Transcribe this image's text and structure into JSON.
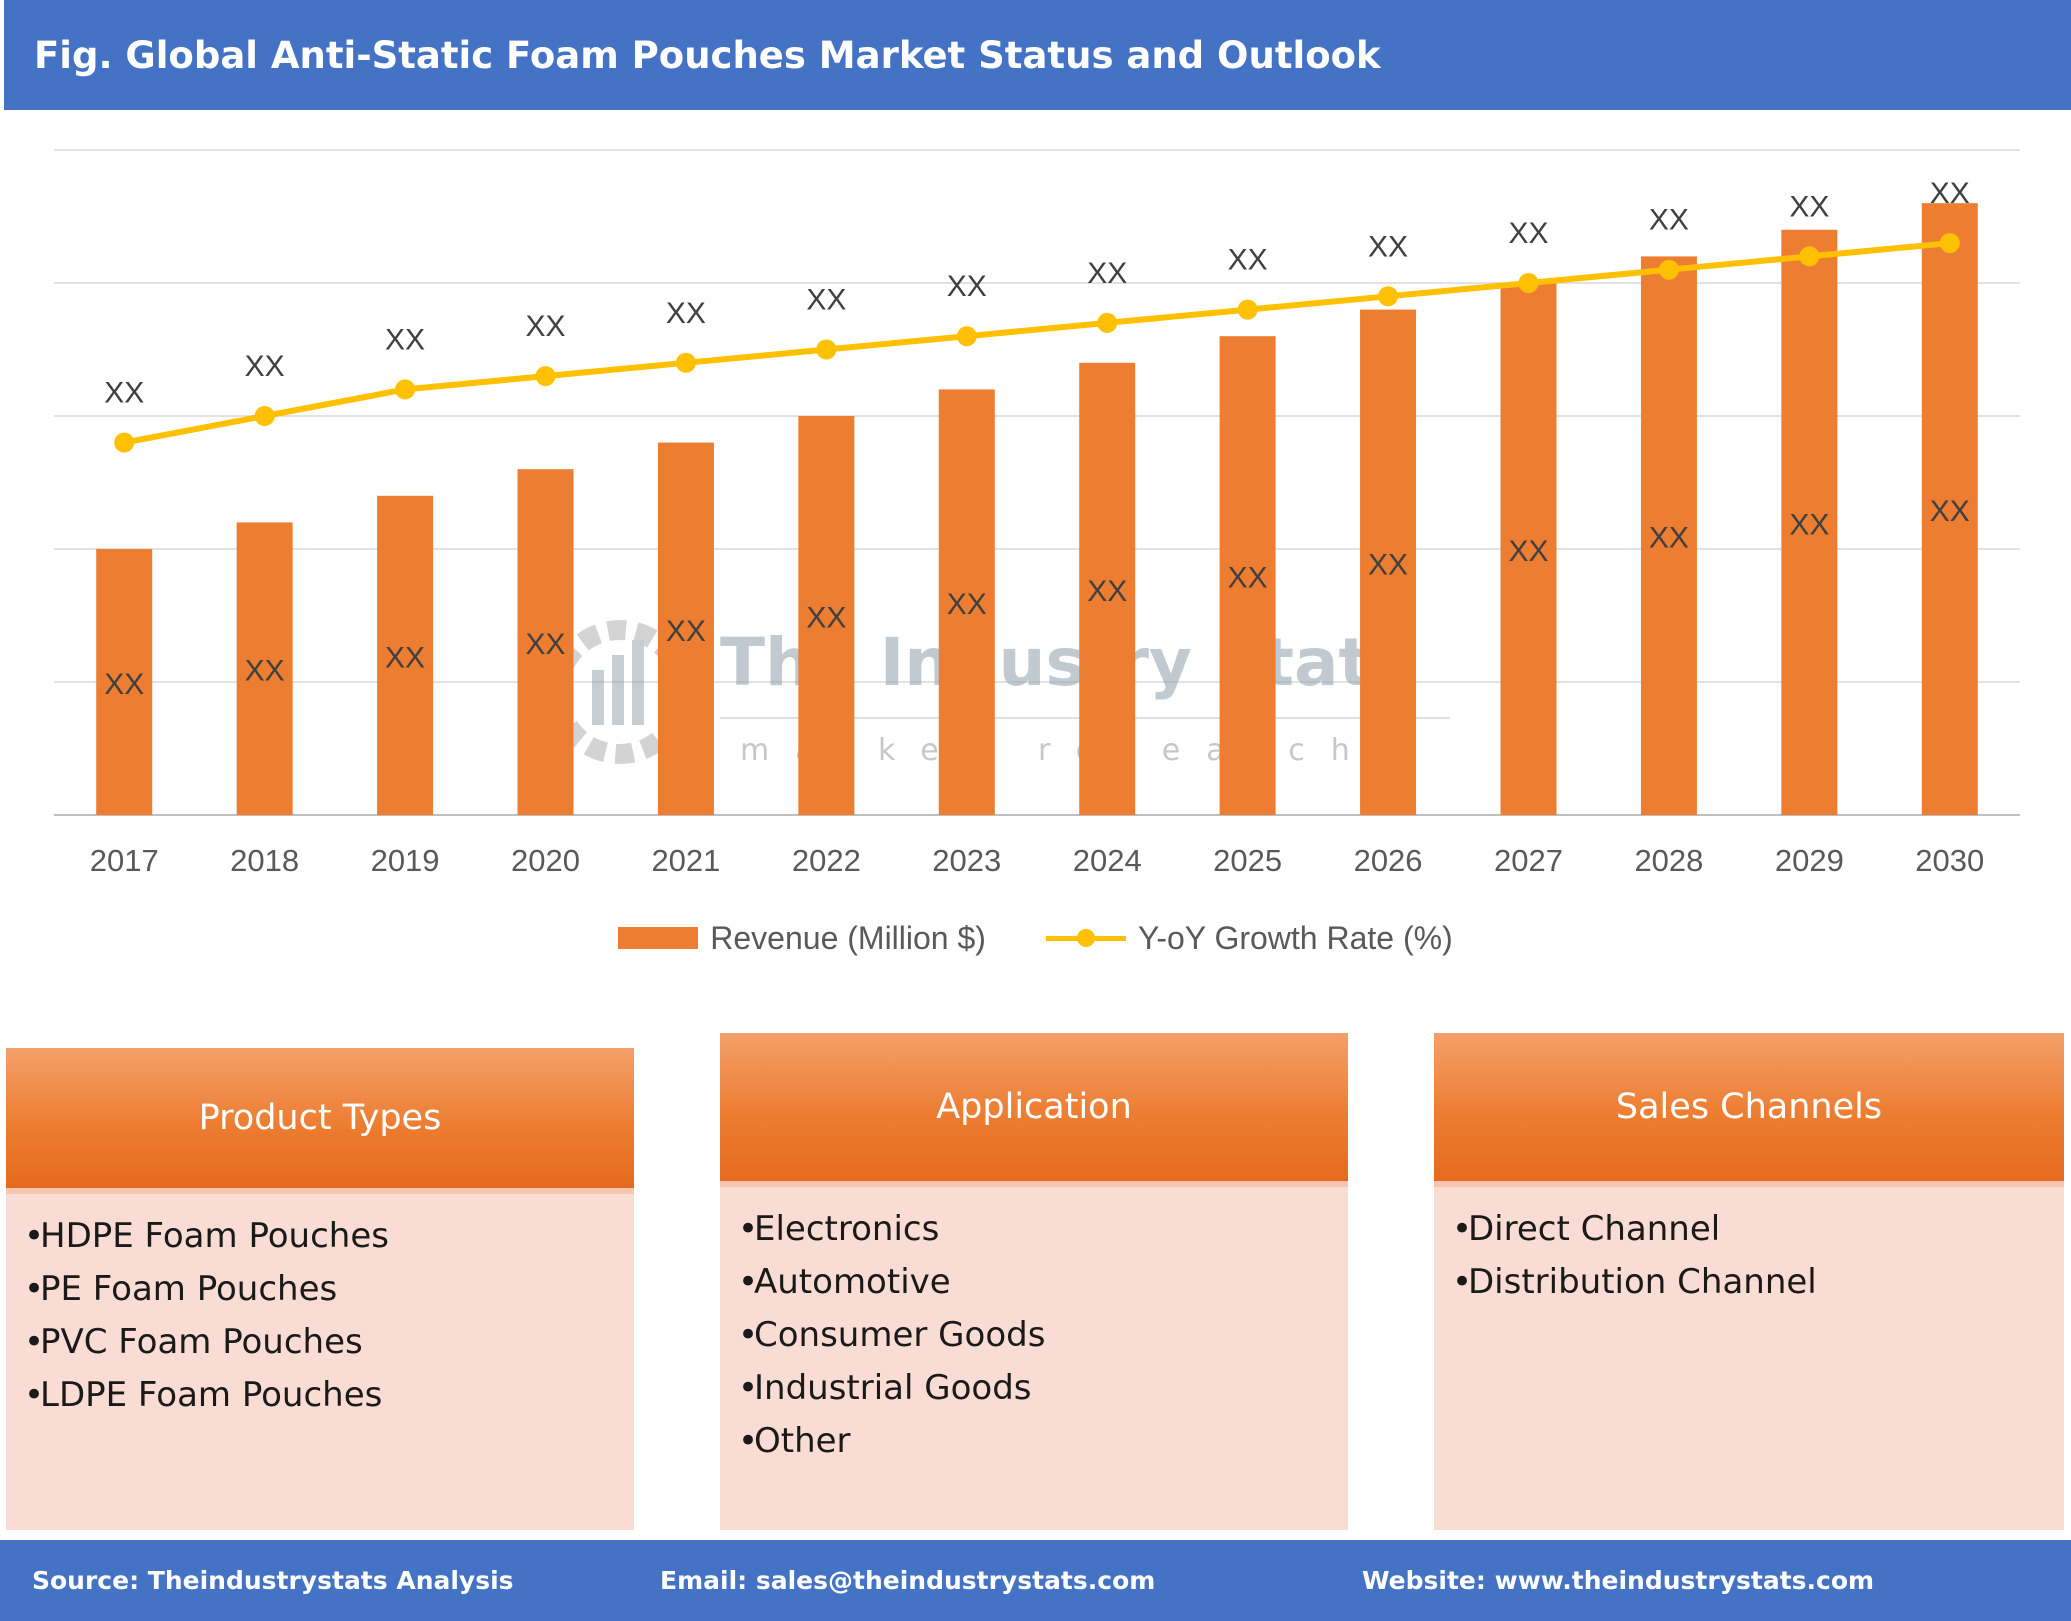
{
  "header": {
    "title": "Fig. Global Anti-Static Foam Pouches Market Status and Outlook"
  },
  "colors": {
    "header_bg": "#4472c4",
    "bar": "#ed7d31",
    "line": "#ffc000",
    "panel_header": "#ed7d31",
    "panel_body": "#f9dcd3"
  },
  "chart_data": {
    "type": "bar",
    "categories": [
      "2017",
      "2018",
      "2019",
      "2020",
      "2021",
      "2022",
      "2023",
      "2024",
      "2025",
      "2026",
      "2027",
      "2028",
      "2029",
      "2030"
    ],
    "series": [
      {
        "name": "Revenue (Million $)",
        "type": "bar",
        "values": [
          40,
          44,
          48,
          52,
          56,
          60,
          64,
          68,
          72,
          76,
          80,
          84,
          88,
          92
        ],
        "data_labels": [
          "XX",
          "XX",
          "XX",
          "XX",
          "XX",
          "XX",
          "XX",
          "XX",
          "XX",
          "XX",
          "XX",
          "XX",
          "XX",
          "XX"
        ]
      },
      {
        "name": "Y-oY Growth Rate (%)",
        "type": "line",
        "values": [
          56,
          60,
          64,
          66,
          68,
          70,
          72,
          74,
          76,
          78,
          80,
          82,
          84,
          86
        ],
        "data_labels": [
          "XX",
          "XX",
          "XX",
          "XX",
          "XX",
          "XX",
          "XX",
          "XX",
          "XX",
          "XX",
          "XX",
          "XX",
          "XX",
          "XX"
        ]
      }
    ],
    "ylim": [
      0,
      100
    ],
    "grid": true,
    "legend_position": "bottom"
  },
  "watermark": {
    "name": "The Industry Stats",
    "tagline": "market research"
  },
  "panels": [
    {
      "title": "Product Types",
      "items": [
        "HDPE Foam Pouches",
        "PE Foam Pouches",
        "PVC Foam Pouches",
        "LDPE Foam Pouches"
      ]
    },
    {
      "title": "Application",
      "items": [
        "Electronics",
        "Automotive",
        "Consumer Goods",
        "Industrial Goods",
        "Other"
      ]
    },
    {
      "title": "Sales Channels",
      "items": [
        "Direct Channel",
        "Distribution Channel"
      ]
    }
  ],
  "footer": {
    "source": "Source: Theindustrystats Analysis",
    "email": "Email: sales@theindustrystats.com",
    "website": "Website: www.theindustrystats.com"
  }
}
